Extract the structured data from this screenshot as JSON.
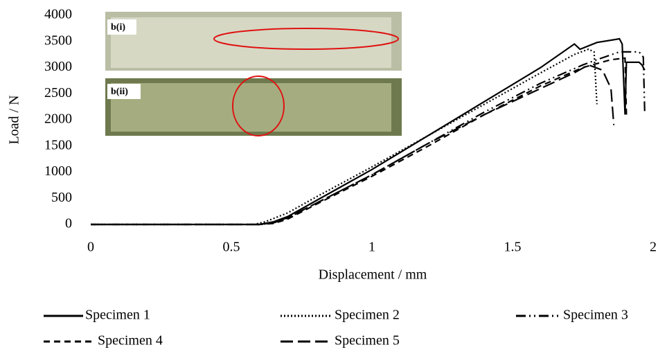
{
  "chart_data": {
    "type": "line",
    "x_label": "Displacement / mm",
    "y_label": "Load / N",
    "xlim": [
      0,
      2
    ],
    "xticks": [
      0,
      0.5,
      1,
      1.5,
      2
    ],
    "ylim": [
      0,
      4000
    ],
    "yticks": [
      0,
      500,
      1000,
      1500,
      2000,
      2500,
      3000,
      3500,
      4000
    ],
    "inset_labels": [
      "b(i)",
      "b(ii)"
    ],
    "series": [
      {
        "name": "Specimen 1",
        "color": "#000000",
        "dash": "none",
        "x": [
          0,
          0.6,
          0.65,
          0.7,
          0.8,
          1.0,
          1.2,
          1.4,
          1.6,
          1.72,
          1.74,
          1.8,
          1.88,
          1.89,
          1.9,
          1.905,
          1.95,
          1.96,
          1.97
        ],
        "values": [
          0,
          0,
          50,
          150,
          450,
          1050,
          1700,
          2350,
          3000,
          3450,
          3350,
          3480,
          3550,
          3450,
          2100,
          3100,
          3100,
          3050,
          2950
        ]
      },
      {
        "name": "Specimen 2",
        "color": "#000000",
        "dash": "2,3",
        "x": [
          0,
          0.58,
          0.62,
          0.7,
          0.8,
          1.0,
          1.2,
          1.4,
          1.6,
          1.72,
          1.77,
          1.79,
          1.8
        ],
        "values": [
          0,
          0,
          50,
          220,
          520,
          1100,
          1700,
          2300,
          2900,
          3250,
          3350,
          3300,
          2300
        ]
      },
      {
        "name": "Specimen 3",
        "color": "#000000",
        "dash": "14,5,2,5,2,5",
        "x": [
          0,
          0.6,
          0.65,
          0.7,
          0.8,
          1.0,
          1.2,
          1.4,
          1.6,
          1.75,
          1.8,
          1.88,
          1.95,
          1.965,
          1.97
        ],
        "values": [
          0,
          0,
          30,
          120,
          400,
          950,
          1550,
          2150,
          2700,
          3050,
          3150,
          3300,
          3300,
          3200,
          2150
        ]
      },
      {
        "name": "Specimen 4",
        "color": "#000000",
        "dash": "9,6",
        "x": [
          0,
          0.6,
          0.65,
          0.7,
          0.8,
          1.0,
          1.2,
          1.4,
          1.6,
          1.75,
          1.85,
          1.9,
          1.905
        ],
        "values": [
          0,
          0,
          20,
          100,
          380,
          920,
          1500,
          2100,
          2650,
          3000,
          3150,
          3180,
          2100
        ]
      },
      {
        "name": "Specimen 5",
        "color": "#000000",
        "dash": "18,7",
        "x": [
          0,
          0.6,
          0.65,
          0.7,
          0.8,
          1.0,
          1.2,
          1.4,
          1.6,
          1.72,
          1.77,
          1.82,
          1.85,
          1.86
        ],
        "values": [
          0,
          0,
          30,
          130,
          400,
          950,
          1550,
          2100,
          2600,
          2900,
          3050,
          2950,
          2600,
          1900
        ]
      }
    ]
  }
}
